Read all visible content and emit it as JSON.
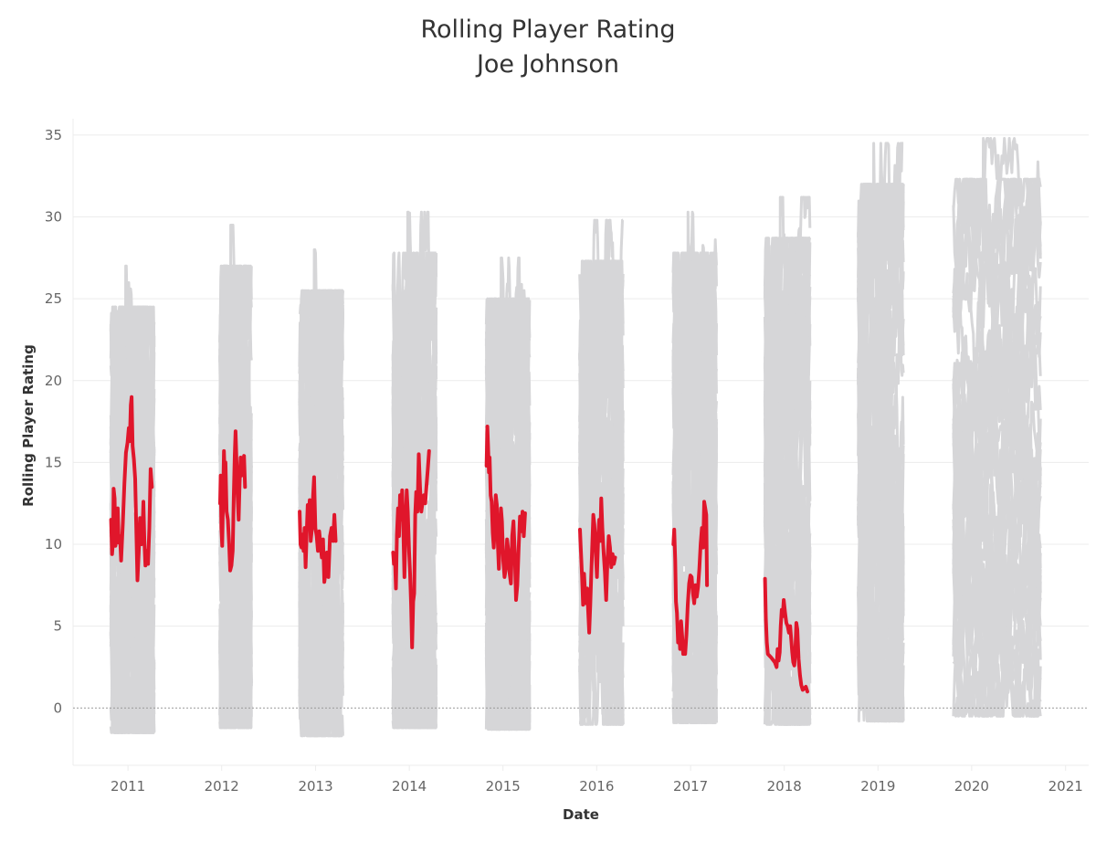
{
  "chart_data": {
    "type": "line",
    "title": "Rolling Player Rating",
    "subtitle": "Joe Johnson",
    "xlabel": "Date",
    "ylabel": "Rolling Player Rating",
    "ylim": [
      -3.5,
      36
    ],
    "yticks": [
      0,
      5,
      10,
      15,
      20,
      25,
      30,
      35
    ],
    "xlim": [
      "2010-06-01",
      "2021-04-01"
    ],
    "xticks": [
      "2011",
      "2012",
      "2013",
      "2014",
      "2015",
      "2016",
      "2017",
      "2018",
      "2019",
      "2020",
      "2021"
    ],
    "grid": true,
    "colors": {
      "highlight": "#e0162b",
      "background": "#d6d6d8"
    },
    "background_series": {
      "description_only": false,
      "seasons": [
        {
          "start": "2010-10-26",
          "end": "2011-04-13",
          "min": -1.5,
          "max": 27
        },
        {
          "start": "2011-12-25",
          "end": "2012-04-26",
          "min": -1.2,
          "max": 29.5
        },
        {
          "start": "2012-10-30",
          "end": "2013-04-17",
          "min": -1.7,
          "max": 28
        },
        {
          "start": "2013-10-29",
          "end": "2014-04-16",
          "min": -1.2,
          "max": 30.3
        },
        {
          "start": "2014-10-28",
          "end": "2015-04-15",
          "min": -1.3,
          "max": 27.5
        },
        {
          "start": "2015-10-27",
          "end": "2016-04-13",
          "min": -1.0,
          "max": 29.8
        },
        {
          "start": "2016-10-25",
          "end": "2017-04-12",
          "min": -0.9,
          "max": 30.3
        },
        {
          "start": "2017-10-17",
          "end": "2018-04-11",
          "min": -1.0,
          "max": 31.2
        },
        {
          "start": "2018-10-16",
          "end": "2019-04-10",
          "min": -0.8,
          "max": 34.5
        },
        {
          "start": "2019-10-22",
          "end": "2020-09-25",
          "min": -0.5,
          "max": 34.8
        }
      ]
    },
    "series": [
      {
        "name": "Joe Johnson",
        "points": [
          [
            "2010-10-27",
            11.5
          ],
          [
            "2010-10-31",
            9.4
          ],
          [
            "2010-11-04",
            10.2
          ],
          [
            "2010-11-06",
            13.4
          ],
          [
            "2010-11-10",
            12.8
          ],
          [
            "2010-11-13",
            9.9
          ],
          [
            "2010-11-17",
            10.4
          ],
          [
            "2010-11-22",
            12.2
          ],
          [
            "2010-11-26",
            10.1
          ],
          [
            "2010-12-01",
            10.5
          ],
          [
            "2010-12-05",
            9.0
          ],
          [
            "2010-12-12",
            11.3
          ],
          [
            "2010-12-18",
            13.7
          ],
          [
            "2010-12-24",
            15.6
          ],
          [
            "2010-12-30",
            16.2
          ],
          [
            "2011-01-04",
            17.1
          ],
          [
            "2011-01-08",
            16.3
          ],
          [
            "2011-01-12",
            18.5
          ],
          [
            "2011-01-15",
            19.0
          ],
          [
            "2011-01-19",
            16.0
          ],
          [
            "2011-01-24",
            15.2
          ],
          [
            "2011-01-29",
            14.0
          ],
          [
            "2011-02-03",
            10.5
          ],
          [
            "2011-02-07",
            7.8
          ],
          [
            "2011-02-12",
            9.5
          ],
          [
            "2011-02-17",
            11.6
          ],
          [
            "2011-02-22",
            10.0
          ],
          [
            "2011-02-27",
            11.2
          ],
          [
            "2011-03-02",
            12.6
          ],
          [
            "2011-03-06",
            10.2
          ],
          [
            "2011-03-10",
            8.7
          ],
          [
            "2011-03-15",
            9.6
          ],
          [
            "2011-03-20",
            8.8
          ],
          [
            "2011-03-25",
            11.0
          ],
          [
            "2011-03-30",
            14.6
          ],
          [
            "2011-04-04",
            13.5
          ],
          null,
          [
            "2011-12-26",
            12.5
          ],
          [
            "2011-12-28",
            14.2
          ],
          [
            "2011-12-31",
            11.0
          ],
          [
            "2012-01-03",
            9.9
          ],
          [
            "2012-01-06",
            12.4
          ],
          [
            "2012-01-10",
            15.7
          ],
          [
            "2012-01-13",
            14.1
          ],
          [
            "2012-01-16",
            15.0
          ],
          [
            "2012-01-20",
            12.0
          ],
          [
            "2012-01-25",
            11.5
          ],
          [
            "2012-01-30",
            10.0
          ],
          [
            "2012-02-03",
            8.4
          ],
          [
            "2012-02-08",
            8.7
          ],
          [
            "2012-02-13",
            9.6
          ],
          [
            "2012-02-17",
            12.8
          ],
          [
            "2012-02-21",
            15.4
          ],
          [
            "2012-02-24",
            16.9
          ],
          [
            "2012-02-28",
            15.0
          ],
          [
            "2012-03-03",
            13.0
          ],
          [
            "2012-03-07",
            11.5
          ],
          [
            "2012-03-11",
            13.8
          ],
          [
            "2012-03-15",
            15.3
          ],
          [
            "2012-03-19",
            14.2
          ],
          [
            "2012-03-24",
            15.0
          ],
          [
            "2012-03-28",
            15.4
          ],
          [
            "2012-04-01",
            13.5
          ],
          null,
          [
            "2012-10-31",
            12.0
          ],
          [
            "2012-11-03",
            10.0
          ],
          [
            "2012-11-07",
            9.8
          ],
          [
            "2012-11-11",
            10.6
          ],
          [
            "2012-11-15",
            9.6
          ],
          [
            "2012-11-19",
            11.0
          ],
          [
            "2012-11-23",
            8.6
          ],
          [
            "2012-11-27",
            10.5
          ],
          [
            "2012-12-01",
            12.4
          ],
          [
            "2012-12-05",
            11.8
          ],
          [
            "2012-12-09",
            12.7
          ],
          [
            "2012-12-13",
            10.2
          ],
          [
            "2012-12-18",
            11.0
          ],
          [
            "2012-12-22",
            13.0
          ],
          [
            "2012-12-26",
            14.1
          ],
          [
            "2012-12-31",
            11.0
          ],
          [
            "2013-01-05",
            10.5
          ],
          [
            "2013-01-10",
            9.6
          ],
          [
            "2013-01-15",
            10.8
          ],
          [
            "2013-01-20",
            10.0
          ],
          [
            "2013-01-25",
            9.2
          ],
          [
            "2013-01-30",
            10.3
          ],
          [
            "2013-02-04",
            7.7
          ],
          [
            "2013-02-09",
            8.3
          ],
          [
            "2013-02-14",
            9.5
          ],
          [
            "2013-02-20",
            8.0
          ],
          [
            "2013-02-26",
            10.5
          ],
          [
            "2013-03-04",
            11.0
          ],
          [
            "2013-03-10",
            10.2
          ],
          [
            "2013-03-15",
            11.8
          ],
          [
            "2013-03-20",
            10.2
          ],
          null,
          [
            "2013-10-30",
            9.5
          ],
          [
            "2013-11-02",
            8.8
          ],
          [
            "2013-11-06",
            9.2
          ],
          [
            "2013-11-10",
            7.3
          ],
          [
            "2013-11-14",
            10.6
          ],
          [
            "2013-11-18",
            12.2
          ],
          [
            "2013-11-22",
            10.5
          ],
          [
            "2013-11-26",
            13.0
          ],
          [
            "2013-11-30",
            11.5
          ],
          [
            "2013-12-04",
            13.3
          ],
          [
            "2013-12-08",
            11.4
          ],
          [
            "2013-12-13",
            8.0
          ],
          [
            "2013-12-17",
            10.5
          ],
          [
            "2013-12-22",
            13.3
          ],
          [
            "2013-12-26",
            12.0
          ],
          [
            "2013-12-31",
            9.6
          ],
          [
            "2014-01-04",
            8.2
          ],
          [
            "2014-01-08",
            6.3
          ],
          [
            "2014-01-12",
            3.7
          ],
          [
            "2014-01-16",
            6.5
          ],
          [
            "2014-01-20",
            7.0
          ],
          [
            "2014-01-24",
            11.8
          ],
          [
            "2014-01-28",
            13.2
          ],
          [
            "2014-02-02",
            12.0
          ],
          [
            "2014-02-07",
            15.5
          ],
          [
            "2014-02-12",
            13.5
          ],
          [
            "2014-02-17",
            12.0
          ],
          [
            "2014-02-22",
            12.6
          ],
          [
            "2014-02-27",
            13.0
          ],
          [
            "2014-03-04",
            12.5
          ],
          [
            "2014-03-09",
            13.6
          ],
          [
            "2014-03-14",
            14.6
          ],
          [
            "2014-03-19",
            15.7
          ],
          null,
          [
            "2014-10-29",
            14.8
          ],
          [
            "2014-11-01",
            17.2
          ],
          [
            "2014-11-04",
            16.0
          ],
          [
            "2014-11-07",
            14.4
          ],
          [
            "2014-11-10",
            15.3
          ],
          [
            "2014-11-14",
            13.0
          ],
          [
            "2014-11-18",
            12.6
          ],
          [
            "2014-11-22",
            10.7
          ],
          [
            "2014-11-26",
            9.8
          ],
          [
            "2014-11-30",
            11.0
          ],
          [
            "2014-12-04",
            13.0
          ],
          [
            "2014-12-08",
            12.4
          ],
          [
            "2014-12-12",
            10.0
          ],
          [
            "2014-12-16",
            8.5
          ],
          [
            "2014-12-20",
            10.5
          ],
          [
            "2014-12-24",
            12.2
          ],
          [
            "2014-12-28",
            11.4
          ],
          [
            "2015-01-02",
            9.0
          ],
          [
            "2015-01-07",
            8.0
          ],
          [
            "2015-01-12",
            8.5
          ],
          [
            "2015-01-17",
            10.3
          ],
          [
            "2015-01-22",
            9.6
          ],
          [
            "2015-01-27",
            8.2
          ],
          [
            "2015-02-01",
            7.6
          ],
          [
            "2015-02-06",
            10.5
          ],
          [
            "2015-02-11",
            11.4
          ],
          [
            "2015-02-16",
            9.5
          ],
          [
            "2015-02-21",
            6.6
          ],
          [
            "2015-02-26",
            7.5
          ],
          [
            "2015-03-03",
            9.8
          ],
          [
            "2015-03-08",
            11.7
          ],
          [
            "2015-03-13",
            10.8
          ],
          [
            "2015-03-18",
            12.0
          ],
          [
            "2015-03-23",
            10.5
          ],
          [
            "2015-03-28",
            11.9
          ],
          null,
          [
            "2015-10-28",
            10.9
          ],
          [
            "2015-11-01",
            9.5
          ],
          [
            "2015-11-05",
            8.0
          ],
          [
            "2015-11-09",
            6.3
          ],
          [
            "2015-11-13",
            8.2
          ],
          [
            "2015-11-17",
            7.0
          ],
          [
            "2015-11-21",
            6.4
          ],
          [
            "2015-11-25",
            7.3
          ],
          [
            "2015-11-29",
            5.9
          ],
          [
            "2015-12-03",
            4.6
          ],
          [
            "2015-12-07",
            6.3
          ],
          [
            "2015-12-11",
            8.2
          ],
          [
            "2015-12-15",
            10.0
          ],
          [
            "2015-12-19",
            11.8
          ],
          [
            "2015-12-23",
            11.2
          ],
          [
            "2015-12-28",
            9.6
          ],
          [
            "2016-01-02",
            8.0
          ],
          [
            "2016-01-07",
            10.5
          ],
          [
            "2016-01-11",
            11.5
          ],
          [
            "2016-01-15",
            10.2
          ],
          [
            "2016-01-19",
            12.8
          ],
          [
            "2016-01-23",
            11.0
          ],
          [
            "2016-01-28",
            9.5
          ],
          [
            "2016-02-02",
            8.3
          ],
          [
            "2016-02-07",
            6.6
          ],
          [
            "2016-02-12",
            9.0
          ],
          [
            "2016-02-17",
            10.5
          ],
          [
            "2016-02-22",
            9.8
          ],
          [
            "2016-02-27",
            8.6
          ],
          [
            "2016-03-03",
            9.4
          ],
          [
            "2016-03-08",
            8.8
          ],
          [
            "2016-03-13",
            9.2
          ],
          null,
          [
            "2016-10-26",
            10.0
          ],
          [
            "2016-10-29",
            10.9
          ],
          [
            "2016-11-02",
            9.0
          ],
          [
            "2016-11-05",
            6.5
          ],
          [
            "2016-11-09",
            5.8
          ],
          [
            "2016-11-13",
            4.0
          ],
          [
            "2016-11-17",
            4.8
          ],
          [
            "2016-11-21",
            3.6
          ],
          [
            "2016-11-25",
            5.3
          ],
          [
            "2016-11-29",
            4.4
          ],
          [
            "2016-12-03",
            3.3
          ],
          [
            "2016-12-07",
            3.8
          ],
          [
            "2016-12-11",
            3.3
          ],
          [
            "2016-12-16",
            4.5
          ],
          [
            "2016-12-21",
            6.3
          ],
          [
            "2016-12-26",
            7.6
          ],
          [
            "2016-12-31",
            8.1
          ],
          [
            "2017-01-05",
            8.0
          ],
          [
            "2017-01-10",
            7.0
          ],
          [
            "2017-01-15",
            6.4
          ],
          [
            "2017-01-20",
            7.5
          ],
          [
            "2017-01-25",
            6.8
          ],
          [
            "2017-01-30",
            7.4
          ],
          [
            "2017-02-04",
            8.5
          ],
          [
            "2017-02-09",
            10.0
          ],
          [
            "2017-02-14",
            11.0
          ],
          [
            "2017-02-19",
            9.8
          ],
          [
            "2017-02-23",
            12.6
          ],
          [
            "2017-02-27",
            12.2
          ],
          [
            "2017-03-03",
            11.8
          ],
          [
            "2017-03-06",
            7.5
          ],
          null,
          [
            "2017-10-18",
            7.9
          ],
          [
            "2017-10-21",
            5.5
          ],
          [
            "2017-10-25",
            4.0
          ],
          [
            "2017-10-29",
            3.3
          ],
          [
            "2017-11-10",
            3.1
          ],
          [
            "2017-11-25",
            2.8
          ],
          [
            "2017-12-02",
            2.5
          ],
          [
            "2017-12-06",
            3.6
          ],
          [
            "2017-12-10",
            2.9
          ],
          [
            "2017-12-14",
            3.4
          ],
          [
            "2017-12-18",
            5.0
          ],
          [
            "2017-12-22",
            6.0
          ],
          [
            "2017-12-26",
            5.6
          ],
          [
            "2017-12-30",
            6.6
          ],
          [
            "2018-01-04",
            5.8
          ],
          [
            "2018-01-09",
            5.2
          ],
          [
            "2018-01-14",
            5.0
          ],
          [
            "2018-01-19",
            4.6
          ],
          [
            "2018-01-24",
            5.0
          ],
          [
            "2018-01-28",
            4.2
          ],
          [
            "2018-02-01",
            3.4
          ],
          [
            "2018-02-05",
            2.8
          ],
          [
            "2018-02-09",
            2.6
          ],
          [
            "2018-02-13",
            3.5
          ],
          [
            "2018-02-17",
            5.2
          ],
          [
            "2018-02-21",
            4.8
          ],
          [
            "2018-02-26",
            3.0
          ],
          [
            "2018-03-03",
            2.0
          ],
          [
            "2018-03-08",
            1.4
          ],
          [
            "2018-03-14",
            1.1
          ],
          [
            "2018-03-20",
            1.2
          ],
          [
            "2018-03-26",
            1.3
          ],
          [
            "2018-04-01",
            1.0
          ]
        ]
      }
    ]
  }
}
